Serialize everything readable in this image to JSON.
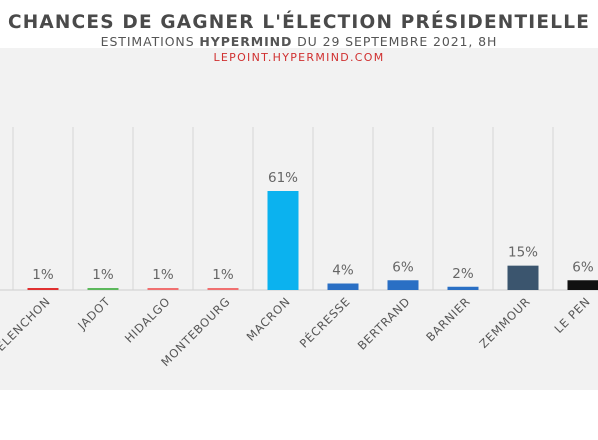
{
  "chart_data": {
    "type": "bar",
    "title": "CHANCES DE GAGNER L'ÉLECTION PRÉSIDENTIELLE",
    "subtitle_prefix": "ESTIMATIONS ",
    "subtitle_brand": "HYPERMIND",
    "subtitle_suffix": " DU 29 SEPTEMBRE 2021, 8H",
    "source": "LEPOINT.HYPERMIND.COM",
    "categories": [
      "MÉLENCHON",
      "JADOT",
      "HIDALGO",
      "MONTEBOURG",
      "MACRON",
      "PÉCRESSE",
      "BERTRAND",
      "BARNIER",
      "ZEMMOUR",
      "LE PEN"
    ],
    "values": [
      1,
      1,
      1,
      1,
      61,
      4,
      6,
      2,
      15,
      6
    ],
    "value_labels": [
      "1%",
      "1%",
      "1%",
      "1%",
      "61%",
      "4%",
      "6%",
      "2%",
      "15%",
      "6%"
    ],
    "colors": [
      "#e03030",
      "#5cb85c",
      "#f07070",
      "#f07070",
      "#0bb2ef",
      "#2a6fc4",
      "#2a6fc4",
      "#2a6fc4",
      "#3b556e",
      "#111111"
    ],
    "ylim": [
      0,
      61
    ],
    "grid": "vertical-separators",
    "legend": "none"
  }
}
